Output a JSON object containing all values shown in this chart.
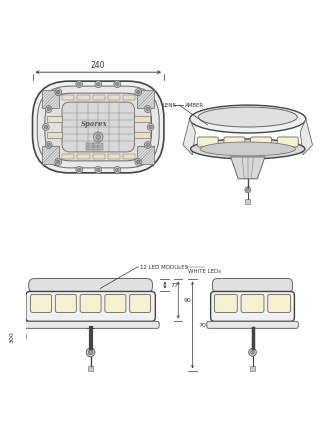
{
  "bg_color": "#ffffff",
  "lc": "#444444",
  "lc_thin": "#666666",
  "lc_light": "#888888",
  "dc": "#333333",
  "dim_240": "240",
  "label_lens": "LENS",
  "label_amber": "AMBER",
  "label_led_modules": "12 LED MODULES",
  "label_white": "WHITE LEDs",
  "dim_77": "77",
  "dim_90": "90",
  "dim_70": "70",
  "dim_300": "300",
  "fc_outer": "#f0f0f0",
  "fc_inner": "#e8e8e8",
  "fc_inner2": "#e0e0e0",
  "fc_led": "#f5f0d0",
  "fc_mount": "#d8d8d8",
  "fc_white": "#ffffff"
}
